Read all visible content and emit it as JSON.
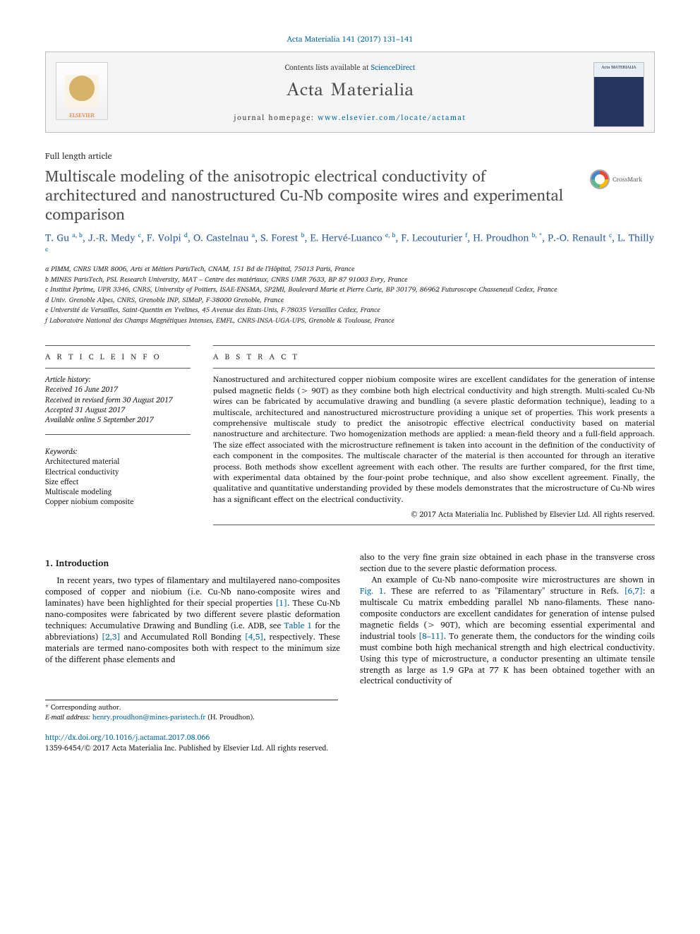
{
  "citation": "Acta Materialia 141 (2017) 131–141",
  "header": {
    "contents_prefix": "Contents lists available at ",
    "contents_link": "ScienceDirect",
    "journal_name": "Acta Materialia",
    "homepage_prefix": "journal homepage: ",
    "homepage_url": "www.elsevier.com/locate/actamat",
    "elsevier_label": "ELSEVIER",
    "cover_label": "Acta MATERIALIA"
  },
  "article_type": "Full length article",
  "title": "Multiscale modeling of the anisotropic electrical conductivity of architectured and nanostructured Cu-Nb composite wires and experimental comparison",
  "crossmark_label": "CrossMark",
  "authors_html": "T. Gu <sup>a, b</sup>, J.-R. Medy <sup>c</sup>, F. Volpi <sup>d</sup>, O. Castelnau <sup>a</sup>, S. Forest <sup>b</sup>, E. Hervé-Luanco <sup>e, b</sup>, F. Lecouturier <sup>f</sup>, H. Proudhon <sup>b, *</sup>, P.-O. Renault <sup>c</sup>, L. Thilly <sup>c</sup>",
  "affiliations": [
    "a PIMM, CNRS UMR 8006, Arts et Métiers ParisTech, CNAM, 151 Bd de l'Hôpital, 75013 Paris, France",
    "b MINES ParisTech, PSL Research University, MAT – Centre des matériaux, CNRS UMR 7633, BP 87 91003 Evry, France",
    "c Institut Pprime, UPR 3346, CNRS, University of Poitiers, ISAE-ENSMA, SP2MI, Boulevard Marie et Pierre Curie, BP 30179, 86962 Futuroscope Chasseneuil Cedex, France",
    "d Univ. Grenoble Alpes, CNRS, Grenoble INP, SIMaP, F-38000 Grenoble, France",
    "e Université de Versailles, Saint-Quentin en Yvelines, 45 Avenue des Etats-Unis, F-78035 Versailles Cedex, France",
    "f Laboratoire National des Champs Magnétiques Intenses, EMFL, CNRS-INSA-UGA-UPS, Grenoble & Toulouse, France"
  ],
  "info_head": "A R T I C L E   I N F O",
  "abs_head": "A B S T R A C T",
  "history": {
    "label": "Article history:",
    "received": "Received 16 June 2017",
    "revised": "Received in revised form 30 August 2017",
    "accepted": "Accepted 31 August 2017",
    "online": "Available online 5 September 2017"
  },
  "keywords_label": "Keywords:",
  "keywords": [
    "Architectured material",
    "Electrical conductivity",
    "Size effect",
    "Multiscale modeling",
    "Copper niobium composite"
  ],
  "abstract": "Nanostructured and architectured copper niobium composite wires are excellent candidates for the generation of intense pulsed magnetic fields (> 90T) as they combine both high electrical conductivity and high strength. Multi-scaled Cu-Nb wires can be fabricated by accumulative drawing and bundling (a severe plastic deformation technique), leading to a multiscale, architectured and nanostructured microstructure providing a unique set of properties. This work presents a comprehensive multiscale study to predict the anisotropic effective electrical conductivity based on material nanostructure and architecture. Two homogenization methods are applied: a mean-field theory and a full-field approach. The size effect associated with the microstructure refinement is taken into account in the definition of the conductivity of each component in the composites. The multiscale character of the material is then accounted for through an iterative process. Both methods show excellent agreement with each other. The results are further compared, for the first time, with experimental data obtained by the four-point probe technique, and also show excellent agreement. Finally, the qualitative and quantitative understanding provided by these models demonstrates that the microstructure of Cu-Nb wires has a significant effect on the electrical conductivity.",
  "copyright_abs": "© 2017 Acta Materialia Inc. Published by Elsevier Ltd. All rights reserved.",
  "section1_title": "1. Introduction",
  "para1": "In recent years, two types of filamentary and multilayered nano-composites composed of copper and niobium (i.e. Cu-Nb nano-composite wires and laminates) have been highlighted for their special properties [1]. These Cu-Nb nano-composites were fabricated by two different severe plastic deformation techniques: Accumulative Drawing and Bundling (i.e. ADB, see Table 1 for the abbreviations) [2,3] and Accumulated Roll Bonding [4,5], respectively. These materials are termed nano-composites both with respect to the minimum size of the different phase elements and",
  "para2": "also to the very fine grain size obtained in each phase in the transverse cross section due to the severe plastic deformation process.",
  "para3": "An example of Cu-Nb nano-composite wire microstructures are shown in Fig. 1. These are referred to as \"Filamentary\" structure in Refs. [6,7]: a multiscale Cu matrix embedding parallel Nb nano-filaments. These nano-composite conductors are excellent candidates for generation of intense pulsed magnetic fields (> 90T), which are becoming essential experimental and industrial tools [8–11]. To generate them, the conductors for the winding coils must combine both high mechanical strength and high electrical conductivity. Using this type of microstructure, a conductor presenting an ultimate tensile strength as large as 1.9 GPa at 77 K has been obtained together with an electrical conductivity of",
  "footnote": {
    "corr": "* Corresponding author.",
    "email_label": "E-mail address: ",
    "email": "henry.proudhon@mines-paristech.fr",
    "email_suffix": " (H. Proudhon)."
  },
  "doi": {
    "url": "http://dx.doi.org/10.1016/j.actamat.2017.08.066",
    "line2": "1359-6454/© 2017 Acta Materialia Inc. Published by Elsevier Ltd. All rights reserved."
  },
  "colors": {
    "link": "#0066a1",
    "title_gray": "#505050",
    "author_blue": "#3060a0"
  }
}
